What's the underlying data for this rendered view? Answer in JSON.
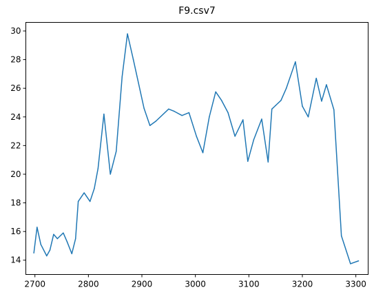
{
  "chart_data": {
    "type": "line",
    "title": "F9.csv7",
    "xlabel": "",
    "ylabel": "",
    "xlim": [
      2683,
      3323
    ],
    "ylim": [
      13.0,
      30.6
    ],
    "xticks": [
      2700,
      2800,
      2900,
      3000,
      3100,
      3200,
      3300
    ],
    "yticks": [
      14,
      16,
      18,
      20,
      22,
      24,
      26,
      28,
      30
    ],
    "grid": false,
    "legend": "none",
    "series": [
      {
        "color": "#1f77b4",
        "x": [
          2698,
          2704,
          2711,
          2722,
          2728,
          2735,
          2742,
          2753,
          2760,
          2769,
          2776,
          2781,
          2792,
          2803,
          2811,
          2818,
          2829,
          2841,
          2852,
          2863,
          2873,
          2884,
          2904,
          2915,
          2926,
          2950,
          2960,
          2975,
          2988,
          3002,
          3014,
          3026,
          3038,
          3049,
          3061,
          3074,
          3089,
          3098,
          3109,
          3124,
          3136,
          3143,
          3150,
          3160,
          3170,
          3187,
          3200,
          3211,
          3226,
          3236,
          3245,
          3259,
          3273,
          3290,
          3305
        ],
        "y": [
          14.5,
          16.3,
          15.1,
          14.3,
          14.7,
          15.8,
          15.5,
          15.9,
          15.3,
          14.45,
          15.5,
          18.1,
          18.7,
          18.1,
          19.0,
          20.4,
          24.2,
          20.0,
          21.6,
          26.8,
          29.8,
          28.0,
          24.6,
          23.4,
          23.7,
          24.55,
          24.4,
          24.1,
          24.3,
          22.65,
          21.5,
          24.0,
          25.75,
          25.15,
          24.3,
          22.65,
          23.8,
          20.9,
          22.4,
          23.85,
          20.85,
          24.55,
          24.8,
          25.15,
          26.0,
          27.85,
          24.75,
          24.0,
          26.7,
          25.1,
          26.25,
          24.5,
          15.7,
          13.75,
          13.95
        ]
      }
    ]
  }
}
